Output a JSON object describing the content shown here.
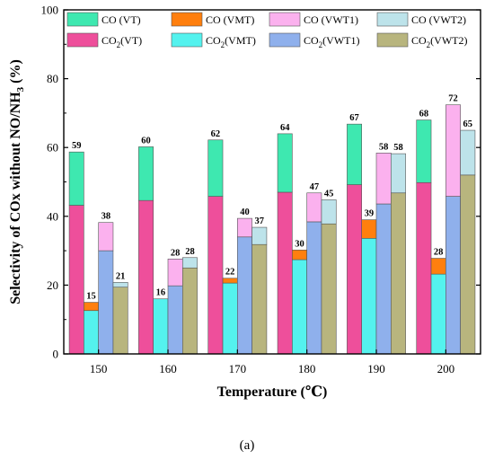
{
  "chart_data": {
    "type": "bar",
    "subtype": "stacked-grouped",
    "title": "",
    "xlabel": "Temperature (℃)",
    "ylabel": "Selectivity of COx without NO/NH3 (%)",
    "ylabel_parts": {
      "before": "Selectivity of COx without NO/NH",
      "sub": "3",
      "after": " (%)"
    },
    "categories": [
      "150",
      "160",
      "170",
      "180",
      "190",
      "200"
    ],
    "ylim": [
      0,
      100
    ],
    "yticks": [
      0,
      20,
      40,
      60,
      80,
      100
    ],
    "catalysts": [
      {
        "id": "VT",
        "co2_value": [
          43.2,
          44.6,
          45.8,
          47.0,
          49.2,
          49.8
        ],
        "co_value": [
          15.5,
          15.6,
          16.4,
          17.0,
          17.6,
          18.2
        ],
        "totals": [
          "59",
          "60",
          "62",
          "64",
          "67",
          "68"
        ]
      },
      {
        "id": "VMT",
        "co2_value": [
          12.6,
          16.0,
          20.6,
          27.4,
          33.6,
          23.2
        ],
        "co_value": [
          2.4,
          0.0,
          1.4,
          2.8,
          5.4,
          4.6
        ],
        "totals": [
          "15",
          "16",
          "22",
          "30",
          "39",
          "28"
        ]
      },
      {
        "id": "VWT1",
        "co2_value": [
          30.0,
          19.8,
          34.0,
          38.4,
          43.6,
          45.8
        ],
        "co_value": [
          8.2,
          7.8,
          5.4,
          8.4,
          14.8,
          26.6
        ],
        "totals": [
          "38",
          "28",
          "40",
          "47",
          "58",
          "72"
        ]
      },
      {
        "id": "VWT2",
        "co2_value": [
          19.4,
          25.0,
          31.8,
          37.8,
          46.8,
          52.0
        ],
        "co_value": [
          1.4,
          3.0,
          5.0,
          7.0,
          11.4,
          13.0
        ],
        "totals": [
          "21",
          "28",
          "37",
          "45",
          "58",
          "65"
        ]
      }
    ],
    "colors": {
      "CO_VT": "#3ee8b0",
      "CO2_VT": "#ee4f9b",
      "CO_VMT": "#ff7f0e",
      "CO2_VMT": "#54f2ee",
      "CO_VWT1": "#fbb1ee",
      "CO2_VWT1": "#8fb0ec",
      "CO_VWT2": "#bde3ea",
      "CO2_VWT2": "#b8b57e"
    },
    "legend": {
      "position": "top, inside, 2 rows",
      "entries": [
        {
          "key": "CO_VT",
          "prefix": "CO",
          "sub": "",
          "suffix": " (VT)"
        },
        {
          "key": "CO_VMT",
          "prefix": "CO",
          "sub": "",
          "suffix": " (VMT)"
        },
        {
          "key": "CO_VWT1",
          "prefix": "CO",
          "sub": "",
          "suffix": " (VWT1)"
        },
        {
          "key": "CO_VWT2",
          "prefix": "CO",
          "sub": "",
          "suffix": " (VWT2)"
        },
        {
          "key": "CO2_VT",
          "prefix": "CO",
          "sub": "2",
          "suffix": "(VT)"
        },
        {
          "key": "CO2_VMT",
          "prefix": "CO",
          "sub": "2",
          "suffix": "(VMT)"
        },
        {
          "key": "CO2_VWT1",
          "prefix": "CO",
          "sub": "2",
          "suffix": "(VWT1)"
        },
        {
          "key": "CO2_VWT2",
          "prefix": "CO",
          "sub": "2",
          "suffix": "(VWT2)"
        }
      ]
    },
    "grid": false
  },
  "caption": "(a)"
}
